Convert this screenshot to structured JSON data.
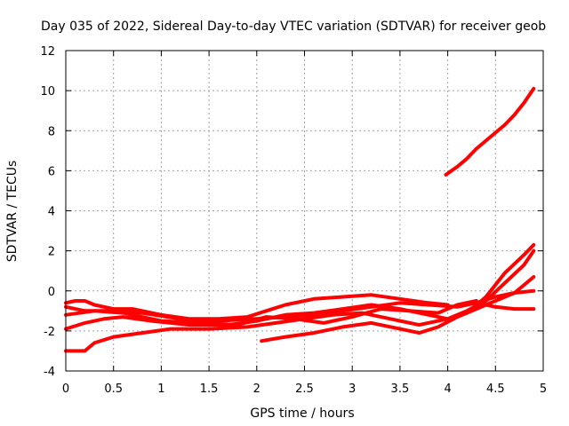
{
  "chart_data": {
    "type": "line",
    "title": "Day 035 of 2022, Sidereal Day-to-day VTEC variation (SDTVAR) for receiver geob",
    "xlabel": "GPS time / hours",
    "ylabel": "SDTVAR / TECUs",
    "xlim": [
      0,
      5
    ],
    "ylim": [
      -4,
      12
    ],
    "x_ticks": [
      0,
      0.5,
      1,
      1.5,
      2,
      2.5,
      3,
      3.5,
      4,
      4.5,
      5
    ],
    "x_tick_labels": [
      "0",
      "0.5",
      "1",
      "1.5",
      "2",
      "2.5",
      "3",
      "3.5",
      "4",
      "4.5",
      "5"
    ],
    "y_ticks": [
      -4,
      -2,
      0,
      2,
      4,
      6,
      8,
      10,
      12
    ],
    "y_tick_labels": [
      "-4",
      "-2",
      "0",
      "2",
      "4",
      "6",
      "8",
      "10",
      "12"
    ],
    "grid": true,
    "color": "#ff0000",
    "series": [
      {
        "name": "trace-1",
        "x": [
          0.0,
          0.1,
          0.2,
          0.3,
          0.5,
          0.7,
          1.0,
          1.3,
          1.6,
          1.9,
          2.1,
          2.3,
          2.6,
          2.9,
          3.2,
          3.5,
          3.8,
          4.0
        ],
        "y": [
          -0.6,
          -0.5,
          -0.5,
          -0.7,
          -0.9,
          -0.9,
          -1.2,
          -1.4,
          -1.4,
          -1.3,
          -1.0,
          -0.7,
          -0.4,
          -0.3,
          -0.2,
          -0.4,
          -0.6,
          -0.7
        ]
      },
      {
        "name": "trace-2",
        "x": [
          0.0,
          0.2,
          0.5,
          0.8,
          1.2,
          1.6,
          2.0,
          2.3,
          2.6,
          2.9,
          3.2,
          3.5,
          3.8,
          4.1,
          4.3,
          4.5,
          4.7,
          4.9
        ],
        "y": [
          -0.8,
          -1.0,
          -1.0,
          -1.1,
          -1.4,
          -1.5,
          -1.4,
          -1.3,
          -1.2,
          -1.0,
          -0.8,
          -0.6,
          -0.7,
          -0.8,
          -0.6,
          -0.8,
          -0.9,
          -0.9
        ]
      },
      {
        "name": "trace-3",
        "x": [
          0.0,
          0.2,
          0.4,
          0.6,
          0.9,
          1.3,
          1.7,
          2.0,
          2.3,
          2.6,
          2.9,
          3.2,
          3.5,
          3.8,
          4.0,
          4.2,
          4.4,
          4.6,
          4.8,
          4.9
        ],
        "y": [
          -1.9,
          -1.6,
          -1.4,
          -1.3,
          -1.5,
          -1.7,
          -1.7,
          -1.5,
          -1.2,
          -1.1,
          -0.9,
          -0.7,
          -0.9,
          -1.2,
          -1.4,
          -1.1,
          -0.3,
          0.9,
          1.8,
          2.3
        ]
      },
      {
        "name": "trace-4",
        "x": [
          0.0,
          0.1,
          0.2,
          0.3,
          0.5,
          0.8,
          1.1,
          1.5,
          1.9,
          2.2,
          2.5,
          2.8,
          3.1,
          3.4,
          3.7,
          4.0,
          4.2,
          4.4,
          4.6,
          4.8,
          4.9
        ],
        "y": [
          -3.0,
          -3.0,
          -3.0,
          -2.6,
          -2.3,
          -2.1,
          -1.9,
          -1.9,
          -1.8,
          -1.6,
          -1.4,
          -1.2,
          -1.1,
          -1.4,
          -1.7,
          -1.4,
          -1.0,
          -0.5,
          0.4,
          1.3,
          2.0
        ]
      },
      {
        "name": "trace-5",
        "x": [
          2.05,
          2.3,
          2.6,
          2.9,
          3.2,
          3.5,
          3.7,
          3.9,
          4.1,
          4.3,
          4.5,
          4.7,
          4.9
        ],
        "y": [
          -2.5,
          -2.3,
          -2.1,
          -1.8,
          -1.6,
          -1.9,
          -2.1,
          -1.8,
          -1.3,
          -0.9,
          -0.5,
          -0.1,
          0.7
        ]
      },
      {
        "name": "trace-6",
        "x": [
          0.0,
          0.3,
          0.6,
          1.0,
          1.4,
          1.8,
          2.1,
          2.4,
          2.7,
          3.0,
          3.3,
          3.6,
          3.9,
          4.1,
          4.3
        ],
        "y": [
          -1.2,
          -1.0,
          -1.1,
          -1.5,
          -1.6,
          -1.7,
          -1.3,
          -1.4,
          -1.6,
          -1.3,
          -0.9,
          -1.0,
          -1.1,
          -0.7,
          -0.5
        ]
      },
      {
        "name": "trace-7",
        "x": [
          4.3,
          4.5,
          4.7,
          4.9
        ],
        "y": [
          -0.6,
          -0.3,
          -0.1,
          0.0
        ]
      },
      {
        "name": "trace-8",
        "x": [
          3.98,
          4.1,
          4.2,
          4.3,
          4.4,
          4.5,
          4.6,
          4.7,
          4.8,
          4.9
        ],
        "y": [
          5.8,
          6.2,
          6.6,
          7.1,
          7.5,
          7.9,
          8.3,
          8.8,
          9.4,
          10.1
        ]
      }
    ]
  }
}
